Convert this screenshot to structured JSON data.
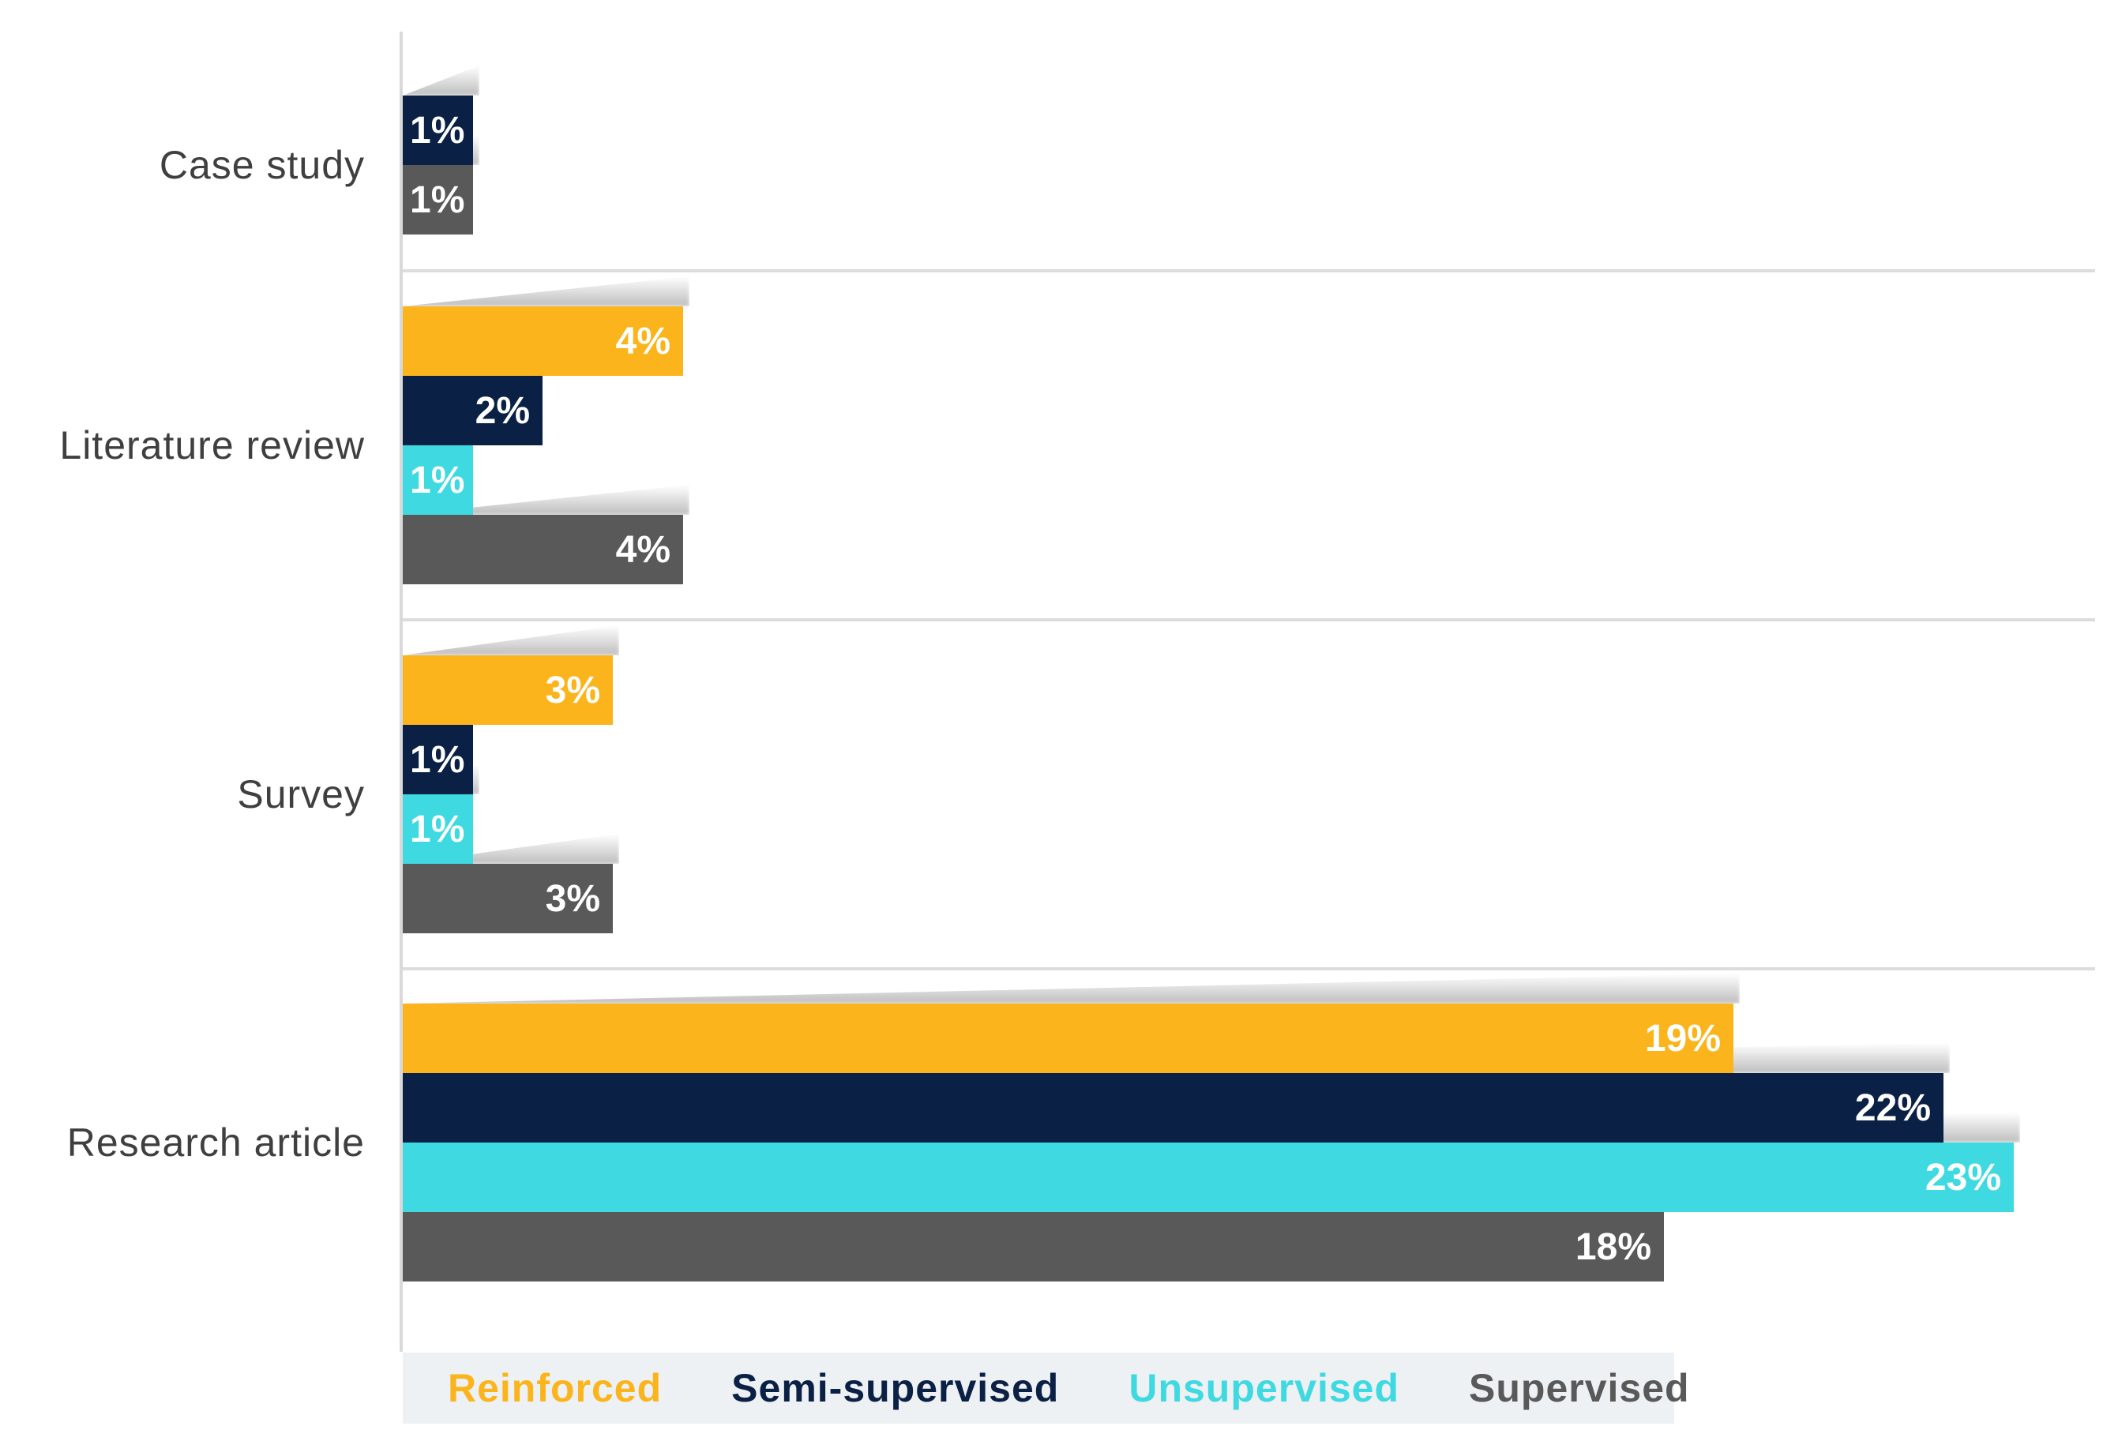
{
  "chart_data": {
    "type": "bar",
    "orientation": "horizontal",
    "title": "",
    "categories": [
      "Case study",
      "Literature review",
      "Survey",
      "Research article"
    ],
    "series": [
      {
        "name": "Reinforced",
        "color": "#fbb41c",
        "values": [
          null,
          4,
          3,
          19
        ]
      },
      {
        "name": "Semi-supervised",
        "color": "#0a2045",
        "values": [
          1,
          2,
          1,
          22
        ]
      },
      {
        "name": "Unsupervised",
        "color": "#3fd9e1",
        "values": [
          null,
          1,
          1,
          23
        ]
      },
      {
        "name": "Supervised",
        "color": "#595959",
        "values": [
          1,
          4,
          3,
          18
        ]
      }
    ],
    "value_suffix": "%",
    "xlim": [
      0,
      24
    ],
    "value_axis_labels_visible": false,
    "gridlines": "category-separators-only",
    "legend_position": "bottom"
  },
  "styles": {
    "background": "#ffffff",
    "axis_line_color": "#d9d9d9",
    "separator_color": "#dcdcdc",
    "legend_background": "#edf1f4",
    "category_label_color": "#3f3f3f",
    "value_label_color": "#ffffff"
  }
}
